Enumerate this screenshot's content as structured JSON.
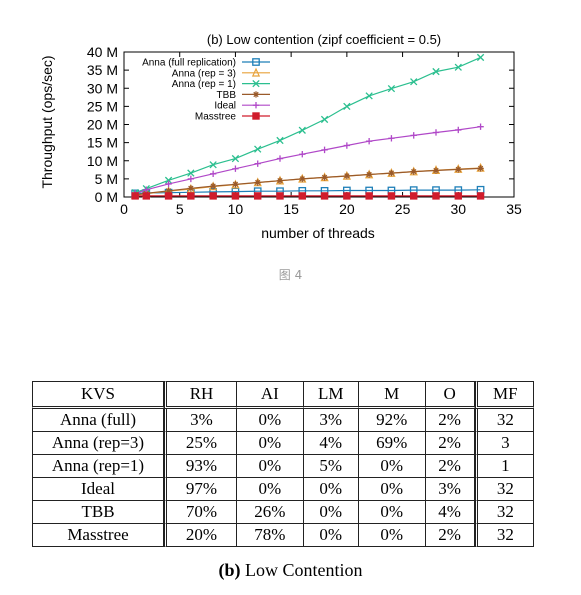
{
  "chart_data": {
    "type": "line",
    "title": "(b) Low contention (zipf coefficient = 0.5)",
    "xlabel": "number of threads",
    "ylabel": "Throughput (ops/sec)",
    "xlim": [
      0,
      35
    ],
    "ylim": [
      0,
      40
    ],
    "xticks": [
      "0",
      "5",
      "10",
      "15",
      "20",
      "25",
      "30",
      "35"
    ],
    "yticks": [
      "0 M",
      "5 M",
      "10 M",
      "15 M",
      "20 M",
      "25 M",
      "30 M",
      "35 M",
      "40 M"
    ],
    "legend_position": "top-left",
    "grid": false,
    "series": [
      {
        "name": "Anna (full replication)",
        "marker": "square-open",
        "color": "#1e7fb8",
        "x": [
          1,
          2,
          4,
          6,
          8,
          10,
          12,
          14,
          16,
          18,
          20,
          22,
          24,
          26,
          28,
          30,
          32
        ],
        "y": [
          1.0,
          1.1,
          1.2,
          1.3,
          1.4,
          1.5,
          1.6,
          1.6,
          1.7,
          1.7,
          1.8,
          1.8,
          1.8,
          1.9,
          1.9,
          1.9,
          2.0
        ]
      },
      {
        "name": "Anna (rep = 3)",
        "marker": "triangle-open",
        "color": "#e8a23a",
        "x": [
          1,
          2,
          4,
          6,
          8,
          10,
          12,
          14,
          16,
          18,
          20,
          22,
          24,
          26,
          28,
          30,
          32
        ],
        "y": [
          0.5,
          0.9,
          1.6,
          2.2,
          2.9,
          3.4,
          4.0,
          4.5,
          5.0,
          5.4,
          5.8,
          6.2,
          6.6,
          7.0,
          7.4,
          7.7,
          8.0
        ]
      },
      {
        "name": "Anna (rep = 1)",
        "marker": "x",
        "color": "#2bbf8f",
        "x": [
          1,
          2,
          4,
          6,
          8,
          10,
          12,
          14,
          16,
          18,
          20,
          22,
          24,
          26,
          28,
          30,
          32
        ],
        "y": [
          1.2,
          2.3,
          4.6,
          6.6,
          8.9,
          10.6,
          13.2,
          15.6,
          18.4,
          21.4,
          25.0,
          27.9,
          29.9,
          31.8,
          34.6,
          35.8,
          38.5
        ]
      },
      {
        "name": "TBB",
        "marker": "asterisk",
        "color": "#9a5a2a",
        "x": [
          1,
          2,
          4,
          6,
          8,
          10,
          12,
          14,
          16,
          18,
          20,
          22,
          24,
          26,
          28,
          30,
          32
        ],
        "y": [
          0.6,
          1.0,
          1.7,
          2.4,
          3.0,
          3.5,
          4.0,
          4.5,
          5.0,
          5.4,
          5.8,
          6.2,
          6.6,
          7.0,
          7.3,
          7.6,
          7.9
        ]
      },
      {
        "name": "Ideal",
        "marker": "plus",
        "color": "#b048c8",
        "x": [
          1,
          2,
          4,
          6,
          8,
          10,
          12,
          14,
          16,
          18,
          20,
          22,
          24,
          26,
          28,
          30,
          32
        ],
        "y": [
          1.0,
          2.0,
          3.6,
          5.0,
          6.4,
          7.8,
          9.2,
          10.6,
          11.8,
          13.0,
          14.2,
          15.4,
          16.2,
          17.0,
          17.8,
          18.5,
          19.4
        ]
      },
      {
        "name": "Masstree",
        "marker": "square-filled",
        "color": "#d01c2c",
        "x": [
          1,
          2,
          4,
          6,
          8,
          10,
          12,
          14,
          16,
          18,
          20,
          22,
          24,
          26,
          28,
          30,
          32
        ],
        "y": [
          0.3,
          0.3,
          0.3,
          0.3,
          0.3,
          0.3,
          0.3,
          0.3,
          0.3,
          0.3,
          0.3,
          0.3,
          0.3,
          0.3,
          0.3,
          0.3,
          0.3
        ]
      }
    ]
  },
  "figure_caption": "图 4",
  "table": {
    "headers": [
      "KVS",
      "RH",
      "AI",
      "LM",
      "M",
      "O",
      "MF"
    ],
    "rows": [
      [
        "Anna (full)",
        "3%",
        "0%",
        "3%",
        "92%",
        "2%",
        "32"
      ],
      [
        "Anna (rep=3)",
        "25%",
        "0%",
        "4%",
        "69%",
        "2%",
        "3"
      ],
      [
        "Anna (rep=1)",
        "93%",
        "0%",
        "5%",
        "0%",
        "2%",
        "1"
      ],
      [
        "Ideal",
        "97%",
        "0%",
        "0%",
        "0%",
        "3%",
        "32"
      ],
      [
        "TBB",
        "70%",
        "26%",
        "0%",
        "0%",
        "4%",
        "32"
      ],
      [
        "Masstree",
        "20%",
        "78%",
        "0%",
        "0%",
        "2%",
        "32"
      ]
    ],
    "caption_label": "(b)",
    "caption_text": "Low Contention"
  }
}
